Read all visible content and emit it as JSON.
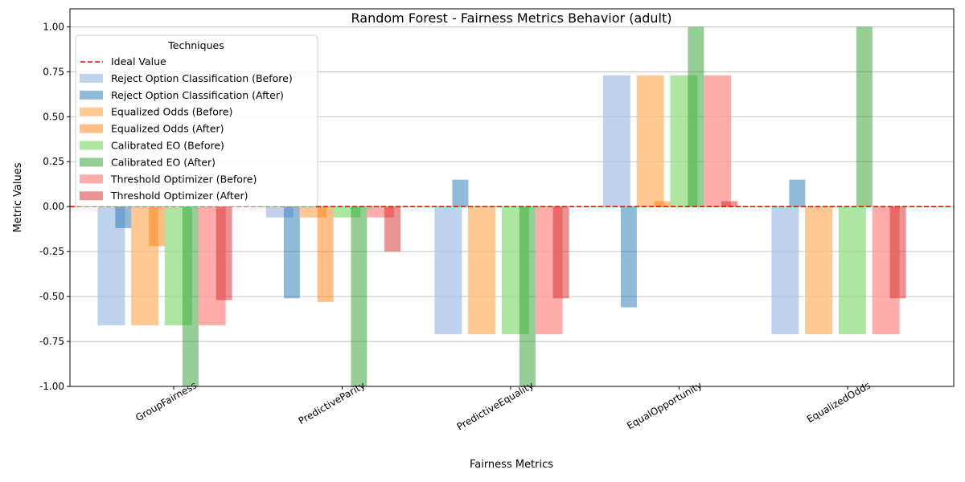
{
  "chart_data": {
    "type": "bar",
    "title": "Random Forest - Fairness Metrics Behavior (adult)",
    "xlabel": "Fairness Metrics",
    "ylabel": "Metric Values",
    "ylim": [
      -1.0,
      1.1
    ],
    "yticks": [
      "-1.00",
      "-0.75",
      "-0.50",
      "-0.25",
      "0.00",
      "0.25",
      "0.50",
      "0.75",
      "1.00"
    ],
    "ytick_values": [
      -1.0,
      -0.75,
      -0.5,
      -0.25,
      0.0,
      0.25,
      0.5,
      0.75,
      1.0
    ],
    "grid": "horizontal",
    "ideal_value": 0.0,
    "ideal_label": "Ideal Value",
    "ideal_color": "#ff0000",
    "categories": [
      "GroupFairness",
      "PredictiveParity",
      "PredictiveEquality",
      "EqualOpportunity",
      "EqualizedOdds"
    ],
    "legend_title": "Techniques",
    "legend_position": "top-left",
    "techniques": [
      {
        "before": {
          "name": "Reject Option Classification (Before)",
          "color": "#aec7e8",
          "values": [
            -0.66,
            -0.06,
            -0.71,
            0.73,
            -0.71
          ]
        },
        "after": {
          "name": "Reject Option Classification (After)",
          "color": "#1f77b4",
          "values": [
            -0.12,
            -0.51,
            0.15,
            -0.56,
            0.15
          ]
        }
      },
      {
        "before": {
          "name": "Equalized Odds (Before)",
          "color": "#ffbb78",
          "values": [
            -0.66,
            -0.06,
            -0.71,
            0.73,
            -0.71
          ]
        },
        "after": {
          "name": "Equalized Odds (After)",
          "color": "#ff7f0e",
          "values": [
            -0.22,
            -0.53,
            0.0,
            0.03,
            0.0
          ]
        }
      },
      {
        "before": {
          "name": "Calibrated EO (Before)",
          "color": "#98df8a",
          "values": [
            -0.66,
            -0.06,
            -0.71,
            0.73,
            -0.71
          ]
        },
        "after": {
          "name": "Calibrated EO (After)",
          "color": "#2ca02c",
          "values": [
            -1.0,
            -1.0,
            -1.0,
            1.0,
            1.0
          ]
        }
      },
      {
        "before": {
          "name": "Threshold Optimizer (Before)",
          "color": "#ff9896",
          "values": [
            -0.66,
            -0.06,
            -0.71,
            0.73,
            -0.71
          ]
        },
        "after": {
          "name": "Threshold Optimizer (After)",
          "color": "#d62728",
          "values": [
            -0.52,
            -0.25,
            -0.51,
            0.03,
            -0.51
          ]
        }
      }
    ]
  }
}
